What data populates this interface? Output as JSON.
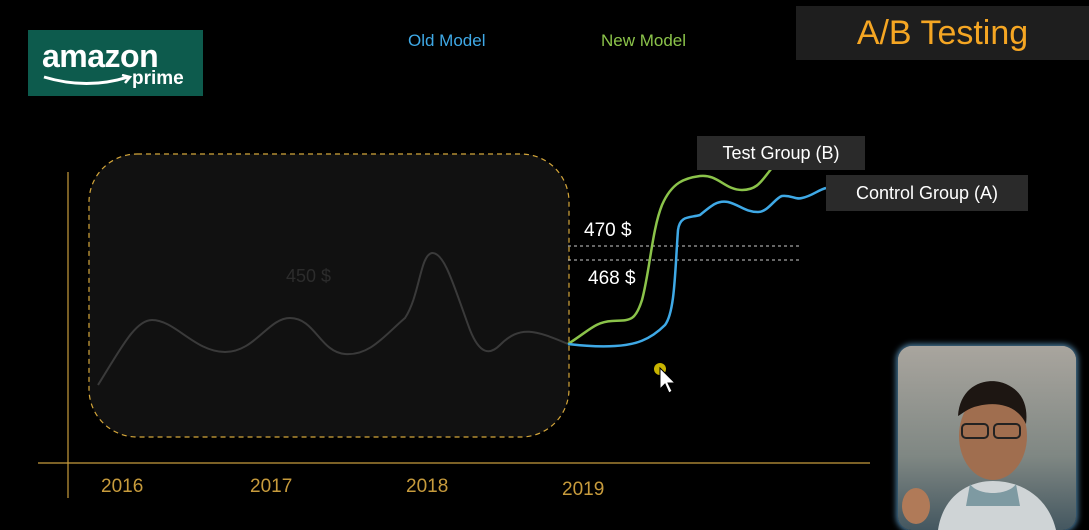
{
  "logo": {
    "brand": "amazon",
    "sub": "prime"
  },
  "legend": {
    "old_model": "Old Model",
    "new_model": "New Model"
  },
  "title": "A/B Testing",
  "chart_data": {
    "type": "line",
    "x_ticks": [
      "2016",
      "2017",
      "2018",
      "2019"
    ],
    "series": [
      {
        "name": "Test Group (B)"
      },
      {
        "name": "Control Group (A)"
      }
    ],
    "annotations": [
      "470 $",
      "468 $",
      "450 $"
    ]
  },
  "labels": {
    "test_group": "Test Group (B)",
    "control_group": "Control Group (A)"
  },
  "colors": {
    "old_model": "#3fa9e6",
    "new_model": "#8bc34a",
    "axis": "#c79b3c",
    "title": "#f5a623",
    "logo_bg": "#0d5b4d"
  }
}
